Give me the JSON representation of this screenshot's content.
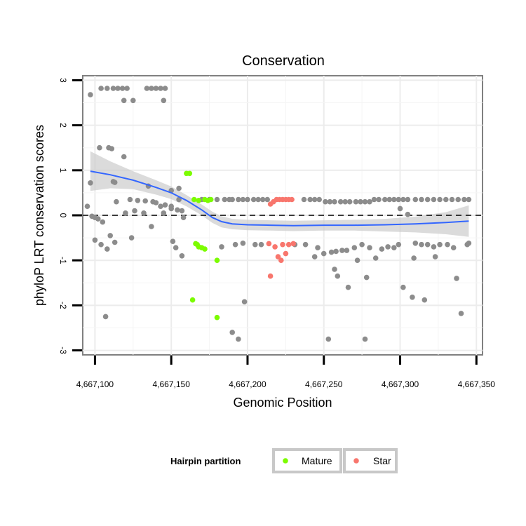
{
  "chart_data": {
    "type": "scatter",
    "title": "Conservation",
    "xlabel": "Genomic Position",
    "ylabel": "phyloP LRT conservation scores",
    "xlim": [
      4667092,
      4667354
    ],
    "ylim": [
      -3.1,
      3.1
    ],
    "x_ticks": [
      4667100,
      4667150,
      4667200,
      4667250,
      4667300,
      4667350
    ],
    "x_tick_labels": [
      "4,667,100",
      "4,667,150",
      "4,667,200",
      "4,667,250",
      "4,667,300",
      "4,667,350"
    ],
    "y_ticks": [
      -3,
      -2,
      -1,
      0,
      1,
      2,
      3
    ],
    "y_tick_labels": [
      "-3",
      "-2",
      "-1",
      "0",
      "1",
      "2",
      "3"
    ],
    "grid": true,
    "reference_line": {
      "y": 0,
      "style": "dashed"
    },
    "legend": {
      "title": "Hairpin partition",
      "position": "bottom",
      "entries": [
        {
          "label": "Mature",
          "color": "#7CFC00"
        },
        {
          "label": "Star",
          "color": "#F8766D"
        }
      ]
    },
    "colors": {
      "other": "#8c8c8c",
      "mature": "#7CFC00",
      "star": "#F8766D",
      "smooth": "#3366FF",
      "band": "#cccccc"
    },
    "smooth": {
      "x": [
        4667097,
        4667110,
        4667125,
        4667140,
        4667150,
        4667160,
        4667170,
        4667177,
        4667183,
        4667190,
        4667200,
        4667215,
        4667230,
        4667250,
        4667270,
        4667290,
        4667310,
        4667330,
        4667345
      ],
      "y": [
        0.98,
        0.9,
        0.78,
        0.62,
        0.5,
        0.33,
        0.12,
        -0.05,
        -0.14,
        -0.19,
        -0.21,
        -0.22,
        -0.23,
        -0.22,
        -0.22,
        -0.21,
        -0.19,
        -0.16,
        -0.13
      ],
      "upper": [
        1.42,
        1.2,
        0.98,
        0.78,
        0.64,
        0.45,
        0.24,
        0.08,
        -0.02,
        -0.08,
        -0.1,
        -0.11,
        -0.12,
        -0.11,
        -0.1,
        -0.08,
        -0.03,
        0.07,
        0.22
      ],
      "lower": [
        0.54,
        0.6,
        0.58,
        0.46,
        0.36,
        0.2,
        0.0,
        -0.17,
        -0.27,
        -0.31,
        -0.33,
        -0.34,
        -0.35,
        -0.34,
        -0.34,
        -0.36,
        -0.38,
        -0.42,
        -0.48
      ]
    },
    "series": [
      {
        "name": "Other",
        "points": [
          [
            4667097,
            2.68
          ],
          [
            4667104,
            2.82
          ],
          [
            4667108,
            2.82
          ],
          [
            4667112,
            2.82
          ],
          [
            4667115,
            2.82
          ],
          [
            4667118,
            2.82
          ],
          [
            4667121,
            2.82
          ],
          [
            4667134,
            2.82
          ],
          [
            4667137,
            2.82
          ],
          [
            4667140,
            2.82
          ],
          [
            4667143,
            2.82
          ],
          [
            4667146,
            2.82
          ],
          [
            4667119,
            2.55
          ],
          [
            4667125,
            2.55
          ],
          [
            4667145,
            2.55
          ],
          [
            4667103,
            1.5
          ],
          [
            4667109,
            1.5
          ],
          [
            4667111,
            1.48
          ],
          [
            4667119,
            1.3
          ],
          [
            4667112,
            0.75
          ],
          [
            4667113,
            0.73
          ],
          [
            4667097,
            0.72
          ],
          [
            4667135,
            0.65
          ],
          [
            4667150,
            0.55
          ],
          [
            4667155,
            0.6
          ],
          [
            4667114,
            0.3
          ],
          [
            4667123,
            0.35
          ],
          [
            4667128,
            0.33
          ],
          [
            4667133,
            0.32
          ],
          [
            4667138,
            0.3
          ],
          [
            4667140,
            0.28
          ],
          [
            4667143,
            0.2
          ],
          [
            4667146,
            0.23
          ],
          [
            4667150,
            0.15
          ],
          [
            4667154,
            0.12
          ],
          [
            4667157,
            0.1
          ],
          [
            4667095,
            0.2
          ],
          [
            4667098,
            -0.02
          ],
          [
            4667100,
            -0.05
          ],
          [
            4667102,
            -0.08
          ],
          [
            4667105,
            -0.15
          ],
          [
            4667100,
            -0.55
          ],
          [
            4667104,
            -0.65
          ],
          [
            4667108,
            -0.75
          ],
          [
            4667110,
            -0.45
          ],
          [
            4667113,
            -0.6
          ],
          [
            4667124,
            -0.5
          ],
          [
            4667137,
            -0.25
          ],
          [
            4667120,
            0.05
          ],
          [
            4667126,
            0.1
          ],
          [
            4667132,
            0.05
          ],
          [
            4667145,
            0.05
          ],
          [
            4667150,
            0.2
          ],
          [
            4667158,
            -0.05
          ],
          [
            4667151,
            -0.58
          ],
          [
            4667153,
            -0.72
          ],
          [
            4667157,
            -0.9
          ],
          [
            4667155,
            0.35
          ],
          [
            4667107,
            -2.25
          ],
          [
            4667170,
            0.35
          ],
          [
            4667175,
            0.35
          ],
          [
            4667180,
            0.35
          ],
          [
            4667185,
            0.35
          ],
          [
            4667188,
            0.35
          ],
          [
            4667190,
            0.35
          ],
          [
            4667194,
            0.35
          ],
          [
            4667197,
            0.35
          ],
          [
            4667200,
            0.35
          ],
          [
            4667204,
            0.35
          ],
          [
            4667207,
            0.35
          ],
          [
            4667210,
            0.35
          ],
          [
            4667213,
            0.35
          ],
          [
            4667237,
            0.35
          ],
          [
            4667241,
            0.35
          ],
          [
            4667244,
            0.35
          ],
          [
            4667247,
            0.35
          ],
          [
            4667251,
            0.3
          ],
          [
            4667254,
            0.3
          ],
          [
            4667257,
            0.3
          ],
          [
            4667261,
            0.3
          ],
          [
            4667264,
            0.3
          ],
          [
            4667267,
            0.3
          ],
          [
            4667271,
            0.3
          ],
          [
            4667274,
            0.3
          ],
          [
            4667277,
            0.3
          ],
          [
            4667280,
            0.3
          ],
          [
            4667283,
            0.35
          ],
          [
            4667286,
            0.35
          ],
          [
            4667290,
            0.35
          ],
          [
            4667293,
            0.35
          ],
          [
            4667296,
            0.35
          ],
          [
            4667299,
            0.35
          ],
          [
            4667302,
            0.35
          ],
          [
            4667305,
            0.35
          ],
          [
            4667310,
            0.35
          ],
          [
            4667314,
            0.35
          ],
          [
            4667318,
            0.35
          ],
          [
            4667322,
            0.35
          ],
          [
            4667326,
            0.35
          ],
          [
            4667330,
            0.35
          ],
          [
            4667334,
            0.35
          ],
          [
            4667338,
            0.35
          ],
          [
            4667342,
            0.35
          ],
          [
            4667345,
            0.35
          ],
          [
            4667300,
            0.15
          ],
          [
            4667305,
            0.02
          ],
          [
            4667183,
            -0.7
          ],
          [
            4667192,
            -0.65
          ],
          [
            4667197,
            -0.62
          ],
          [
            4667205,
            -0.65
          ],
          [
            4667209,
            -0.65
          ],
          [
            4667231,
            -0.65
          ],
          [
            4667238,
            -0.65
          ],
          [
            4667246,
            -0.72
          ],
          [
            4667244,
            -0.92
          ],
          [
            4667250,
            -0.85
          ],
          [
            4667255,
            -0.82
          ],
          [
            4667258,
            -0.8
          ],
          [
            4667262,
            -0.78
          ],
          [
            4667265,
            -0.78
          ],
          [
            4667270,
            -0.72
          ],
          [
            4667275,
            -0.65
          ],
          [
            4667280,
            -0.72
          ],
          [
            4667288,
            -0.75
          ],
          [
            4667292,
            -0.7
          ],
          [
            4667296,
            -0.72
          ],
          [
            4667299,
            -0.65
          ],
          [
            4667310,
            -0.62
          ],
          [
            4667314,
            -0.65
          ],
          [
            4667318,
            -0.65
          ],
          [
            4667322,
            -0.7
          ],
          [
            4667326,
            -0.65
          ],
          [
            4667331,
            -0.65
          ],
          [
            4667335,
            -0.72
          ],
          [
            4667344,
            -0.65
          ],
          [
            4667345,
            -0.62
          ],
          [
            4667284,
            -0.95
          ],
          [
            4667309,
            -0.95
          ],
          [
            4667323,
            -0.92
          ],
          [
            4667257,
            -1.2
          ],
          [
            4667259,
            -1.35
          ],
          [
            4667266,
            -1.6
          ],
          [
            4667272,
            -1.0
          ],
          [
            4667278,
            -1.38
          ],
          [
            4667302,
            -1.6
          ],
          [
            4667308,
            -1.82
          ],
          [
            4667316,
            -1.88
          ],
          [
            4667337,
            -1.4
          ],
          [
            4667340,
            -2.18
          ],
          [
            4667198,
            -1.92
          ],
          [
            4667190,
            -2.6
          ],
          [
            4667194,
            -2.75
          ],
          [
            4667253,
            -2.75
          ],
          [
            4667277,
            -2.75
          ]
        ]
      },
      {
        "name": "Mature",
        "points": [
          [
            4667160,
            0.93
          ],
          [
            4667162,
            0.93
          ],
          [
            4667165,
            0.35
          ],
          [
            4667168,
            0.33
          ],
          [
            4667172,
            0.35
          ],
          [
            4667174,
            0.33
          ],
          [
            4667176,
            0.35
          ],
          [
            4667166,
            -0.63
          ],
          [
            4667167,
            -0.65
          ],
          [
            4667168,
            -0.7
          ],
          [
            4667170,
            -0.72
          ],
          [
            4667172,
            -0.75
          ],
          [
            4667180,
            -1.0
          ],
          [
            4667164,
            -1.88
          ],
          [
            4667180,
            -2.27
          ]
        ]
      },
      {
        "name": "Star",
        "points": [
          [
            4667215,
            0.25
          ],
          [
            4667217,
            0.3
          ],
          [
            4667219,
            0.35
          ],
          [
            4667221,
            0.35
          ],
          [
            4667223,
            0.35
          ],
          [
            4667225,
            0.35
          ],
          [
            4667227,
            0.35
          ],
          [
            4667229,
            0.35
          ],
          [
            4667214,
            -0.63
          ],
          [
            4667218,
            -0.7
          ],
          [
            4667223,
            -0.65
          ],
          [
            4667227,
            -0.65
          ],
          [
            4667230,
            -0.63
          ],
          [
            4667220,
            -0.92
          ],
          [
            4667222,
            -1.0
          ],
          [
            4667225,
            -0.85
          ],
          [
            4667215,
            -1.35
          ]
        ]
      }
    ]
  }
}
